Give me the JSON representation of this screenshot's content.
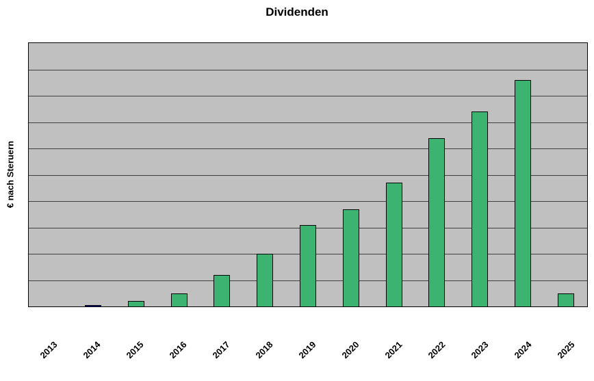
{
  "chart_data": {
    "type": "bar",
    "title": "Dividenden",
    "xlabel": "",
    "ylabel": "€ nach Steruern",
    "categories": [
      "2013",
      "2014",
      "2015",
      "2016",
      "2017",
      "2018",
      "2019",
      "2020",
      "2021",
      "2022",
      "2023",
      "2024",
      "2025"
    ],
    "values": [
      0,
      0.5,
      2,
      5,
      12,
      20,
      31,
      37,
      47,
      64,
      74,
      86,
      5
    ],
    "values_note": "relative heights in % of plot height; y-axis has no numeric tick labels",
    "ylim": [
      0,
      100
    ],
    "grid": true,
    "gridline_intervals": 10,
    "legend": "none",
    "colors": {
      "bar_fill": "#3CB371",
      "bar_border": "#000000",
      "bar_fill_2014": "#000080",
      "plot_background": "#C0C0C0",
      "gridline": "#3F3F3F",
      "text": "#000000",
      "page_background": "#FFFFFF"
    }
  }
}
